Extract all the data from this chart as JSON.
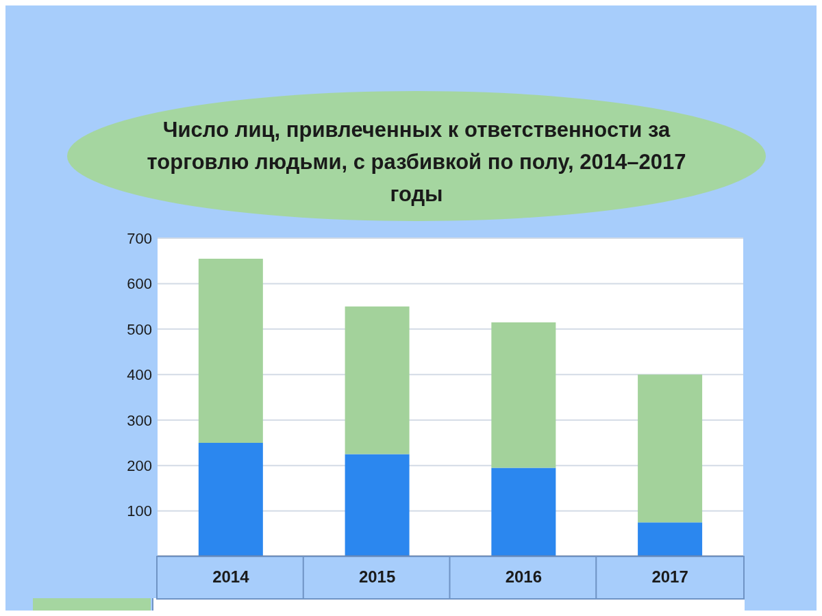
{
  "chart_data": {
    "type": "bar",
    "title": "Число лиц, привлеченных к ответственности за торговлю людьми,  с разбивкой по полу, 2014–2017 годы",
    "categories": [
      "2014",
      "2015",
      "2016",
      "2017"
    ],
    "stacked": true,
    "series": [
      {
        "color": "#2b87ef",
        "values": [
          250,
          225,
          195,
          75
        ]
      },
      {
        "color": "#a3d29b",
        "values": [
          405,
          325,
          320,
          325
        ]
      }
    ],
    "ylim": [
      0,
      700
    ],
    "yticks": [
      100,
      200,
      300,
      400,
      500,
      600,
      700
    ],
    "grid": "y"
  }
}
